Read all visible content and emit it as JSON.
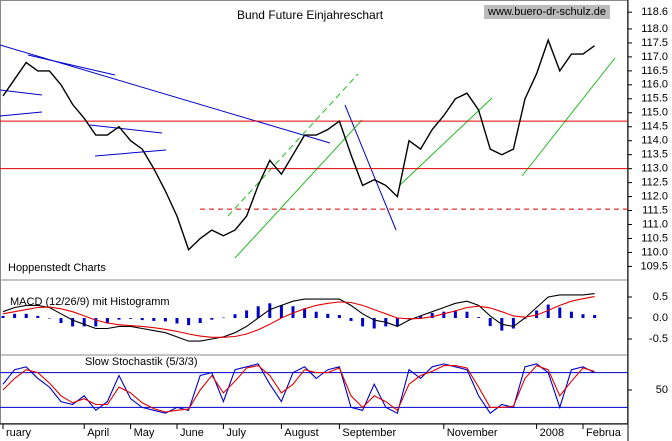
{
  "chart_data": [
    {
      "type": "line",
      "title": "Bund Future Einjahreschart",
      "watermark": "www.buero-dr-schulz.de",
      "note": "Hoppenstedt Charts",
      "categories": [
        "ruary",
        null,
        null,
        null,
        null,
        null,
        null,
        "April",
        null,
        null,
        null,
        "May",
        null,
        null,
        null,
        "June",
        null,
        null,
        null,
        "July",
        null,
        null,
        null,
        null,
        "August",
        null,
        null,
        null,
        null,
        "September",
        null,
        null,
        null,
        null,
        null,
        null,
        null,
        null,
        "November",
        null,
        null,
        null,
        null,
        null,
        null,
        null,
        "2008",
        null,
        null,
        null,
        "Februa",
        null
      ],
      "color": "#000000",
      "values": [
        115.6,
        116.2,
        116.8,
        116.5,
        116.5,
        116.0,
        115.3,
        114.8,
        114.2,
        114.2,
        114.5,
        114.0,
        113.7,
        113.0,
        112.2,
        111.3,
        110.1,
        110.5,
        110.8,
        110.6,
        110.8,
        111.3,
        112.4,
        113.3,
        112.8,
        113.5,
        114.2,
        114.2,
        114.4,
        114.7,
        113.5,
        112.4,
        112.6,
        112.4,
        112.0,
        114.0,
        113.7,
        114.4,
        114.9,
        115.5,
        115.7,
        115.1,
        113.7,
        113.5,
        113.7,
        115.5,
        116.4,
        117.6,
        116.5,
        117.1,
        117.1,
        117.4
      ],
      "levels": [
        {
          "value": 114.7,
          "color": "#e00000",
          "style": "solid"
        },
        {
          "value": 113.0,
          "color": "#e00000",
          "style": "solid"
        },
        {
          "value": 111.55,
          "color": "#e00000",
          "style": "dashed"
        }
      ],
      "ylim": [
        109.3,
        118.75
      ],
      "yticks": [
        118.6,
        {
          "value": 118,
          "label": "118.0"
        },
        117.5,
        {
          "value": 117,
          "label": "117.0"
        },
        116.5,
        {
          "value": 116,
          "label": "116.0"
        },
        115.5,
        {
          "value": 115,
          "label": "115.0"
        },
        114.5,
        {
          "value": 114,
          "label": "114.0"
        },
        113.5,
        {
          "value": 113,
          "label": "113.0"
        },
        112.5,
        {
          "value": 112,
          "label": "112.0"
        },
        111.5,
        {
          "value": 111,
          "label": "111.0"
        },
        110.5,
        {
          "value": 110,
          "label": "110.0"
        },
        109.5
      ],
      "grid": false
    },
    {
      "type": "line",
      "title": "MACD (12/26/9) mit Histogramm",
      "series": [
        {
          "color": "#0000cc",
          "style": "bar",
          "values": [
            0.05,
            0.1,
            0.1,
            0.05,
            -0.01,
            -0.12,
            -0.2,
            -0.2,
            -0.2,
            -0.13,
            -0.04,
            -0.02,
            -0.05,
            -0.07,
            -0.08,
            -0.13,
            -0.17,
            -0.12,
            -0.04,
            0.01,
            0.09,
            0.18,
            0.28,
            0.35,
            0.3,
            0.28,
            0.23,
            0.15,
            0.1,
            0.07,
            -0.07,
            -0.2,
            -0.25,
            -0.2,
            -0.2,
            -0.03,
            0.06,
            0.12,
            0.15,
            0.18,
            0.15,
            0.02,
            -0.19,
            -0.3,
            -0.25,
            -0.02,
            0.18,
            0.32,
            0.25,
            0.15,
            0.09,
            0.07
          ]
        },
        {
          "color": "#000000",
          "style": "line",
          "values": [
            0.15,
            0.25,
            0.3,
            0.3,
            0.25,
            0.1,
            -0.05,
            -0.15,
            -0.25,
            -0.25,
            -0.2,
            -0.2,
            -0.25,
            -0.3,
            -0.35,
            -0.45,
            -0.55,
            -0.55,
            -0.5,
            -0.45,
            -0.35,
            -0.2,
            0.0,
            0.2,
            0.3,
            0.4,
            0.45,
            0.45,
            0.45,
            0.45,
            0.3,
            0.1,
            -0.05,
            -0.1,
            -0.2,
            -0.05,
            0.05,
            0.15,
            0.25,
            0.35,
            0.4,
            0.3,
            0.05,
            -0.15,
            -0.2,
            0.0,
            0.25,
            0.5,
            0.55,
            0.55,
            0.55,
            0.58
          ]
        },
        {
          "color": "#e00000",
          "style": "line",
          "values": [
            0.1,
            0.15,
            0.2,
            0.25,
            0.26,
            0.22,
            0.15,
            0.05,
            -0.05,
            -0.12,
            -0.16,
            -0.18,
            -0.2,
            -0.23,
            -0.27,
            -0.32,
            -0.38,
            -0.43,
            -0.46,
            -0.46,
            -0.44,
            -0.38,
            -0.28,
            -0.15,
            0.0,
            0.12,
            0.22,
            0.3,
            0.35,
            0.38,
            0.37,
            0.3,
            0.2,
            0.1,
            0.0,
            -0.02,
            -0.01,
            0.03,
            0.1,
            0.17,
            0.25,
            0.28,
            0.24,
            0.15,
            0.05,
            0.02,
            0.07,
            0.18,
            0.3,
            0.4,
            0.46,
            0.51
          ]
        }
      ],
      "ylim": [
        -0.8,
        0.8
      ],
      "yticks": [
        0.5,
        {
          "value": 0,
          "label": "0.0"
        },
        -0.5
      ]
    },
    {
      "type": "line",
      "title": "Slow Stochastik (5/3/3)",
      "series": [
        {
          "color": "#0000cc",
          "style": "line",
          "values": [
            60,
            85,
            90,
            70,
            55,
            30,
            25,
            40,
            15,
            30,
            75,
            35,
            20,
            15,
            10,
            20,
            15,
            75,
            80,
            30,
            85,
            90,
            95,
            60,
            30,
            80,
            90,
            70,
            85,
            90,
            20,
            15,
            60,
            20,
            10,
            85,
            70,
            90,
            95,
            90,
            85,
            40,
            10,
            25,
            20,
            90,
            95,
            80,
            20,
            85,
            90,
            80
          ]
        },
        {
          "color": "#e00000",
          "style": "line",
          "values": [
            50,
            70,
            85,
            80,
            62,
            40,
            28,
            35,
            25,
            25,
            55,
            45,
            28,
            18,
            12,
            15,
            17,
            50,
            75,
            45,
            65,
            88,
            92,
            75,
            45,
            60,
            85,
            80,
            80,
            88,
            40,
            20,
            40,
            30,
            15,
            60,
            75,
            82,
            92,
            92,
            88,
            55,
            20,
            20,
            22,
            70,
            92,
            85,
            40,
            65,
            88,
            82
          ]
        }
      ],
      "levels": [
        {
          "value": 80,
          "color": "#0000cc",
          "style": "solid"
        },
        {
          "value": 20,
          "color": "#0000cc",
          "style": "solid"
        }
      ],
      "ylim": [
        0,
        100
      ],
      "yticks": [
        50
      ]
    }
  ]
}
